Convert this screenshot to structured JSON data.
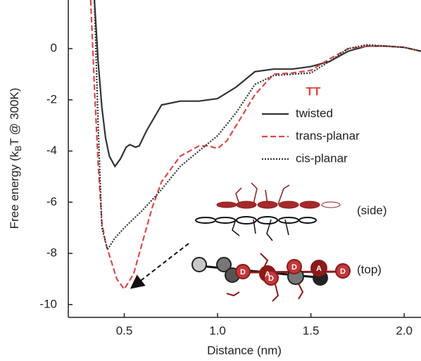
{
  "chart_data": {
    "type": "line",
    "x_label": "Distance (nm)",
    "y_label": {
      "start": "Free energy (k",
      "sub": "B",
      "end": "T @ 300K)"
    },
    "legend_title": "TT",
    "xlim": [
      0.2,
      2.09
    ],
    "xticks": [
      0.5,
      {
        "value": 1.0,
        "label": "1.0"
      },
      1.5,
      {
        "value": 2.0,
        "label": "2.0"
      }
    ],
    "ylim": [
      -10.5,
      1.9
    ],
    "yticks": [
      0,
      -2,
      -4,
      -6,
      -8,
      -10
    ],
    "series": [
      {
        "name": "twisted",
        "color": "#333333",
        "dash": "solid",
        "x": [
          0.34,
          0.36,
          0.38,
          0.4,
          0.42,
          0.45,
          0.48,
          0.51,
          0.53,
          0.56,
          0.58,
          0.62,
          0.7,
          0.8,
          0.9,
          1.0,
          1.1,
          1.2,
          1.3,
          1.4,
          1.5,
          1.6,
          1.7,
          1.8,
          1.9,
          2.0,
          2.09
        ],
        "values": [
          1.9,
          -0.5,
          -2.3,
          -3.5,
          -4.2,
          -4.6,
          -4.3,
          -3.85,
          -3.75,
          -3.85,
          -3.8,
          -3.2,
          -2.2,
          -2.05,
          -2.05,
          -1.95,
          -1.5,
          -0.9,
          -0.8,
          -0.8,
          -0.7,
          -0.5,
          -0.1,
          0.1,
          0.1,
          0.05,
          -0.1
        ]
      },
      {
        "name": "trans-planar",
        "color": "#d9484a",
        "dash": "dashed",
        "x": [
          0.32,
          0.34,
          0.36,
          0.38,
          0.4,
          0.43,
          0.46,
          0.5,
          0.55,
          0.6,
          0.65,
          0.7,
          0.8,
          0.9,
          0.95,
          1.0,
          1.05,
          1.1,
          1.2,
          1.3,
          1.4,
          1.5,
          1.6,
          1.7,
          1.8,
          1.9,
          2.0,
          2.09
        ],
        "values": [
          1.9,
          -1.5,
          -4.5,
          -6.8,
          -7.6,
          -8.3,
          -9.0,
          -9.4,
          -8.8,
          -7.5,
          -6.2,
          -5.2,
          -4.2,
          -3.8,
          -3.8,
          -3.9,
          -3.6,
          -3.0,
          -1.8,
          -1.0,
          -0.95,
          -0.85,
          -0.4,
          0.0,
          0.1,
          0.1,
          0.05,
          -0.1
        ]
      },
      {
        "name": "cis-planar",
        "color": "#333333",
        "dash": "dotted",
        "x": [
          0.34,
          0.36,
          0.38,
          0.41,
          0.45,
          0.5,
          0.6,
          0.7,
          0.8,
          0.9,
          1.0,
          1.1,
          1.2,
          1.3,
          1.4,
          1.5,
          1.6,
          1.7,
          1.8,
          1.9,
          2.0,
          2.09
        ],
        "values": [
          1.9,
          -3.0,
          -7.0,
          -7.85,
          -7.4,
          -7.0,
          -6.3,
          -5.5,
          -4.6,
          -4.0,
          -3.4,
          -2.5,
          -1.4,
          -1.05,
          -1.0,
          -0.95,
          -0.5,
          0.0,
          0.15,
          0.1,
          0.05,
          -0.1
        ]
      }
    ],
    "annotations": [
      "(side)",
      "(top)"
    ],
    "inset_atom_labels": [
      "D",
      "A",
      "D",
      "D",
      "A",
      "D"
    ]
  }
}
